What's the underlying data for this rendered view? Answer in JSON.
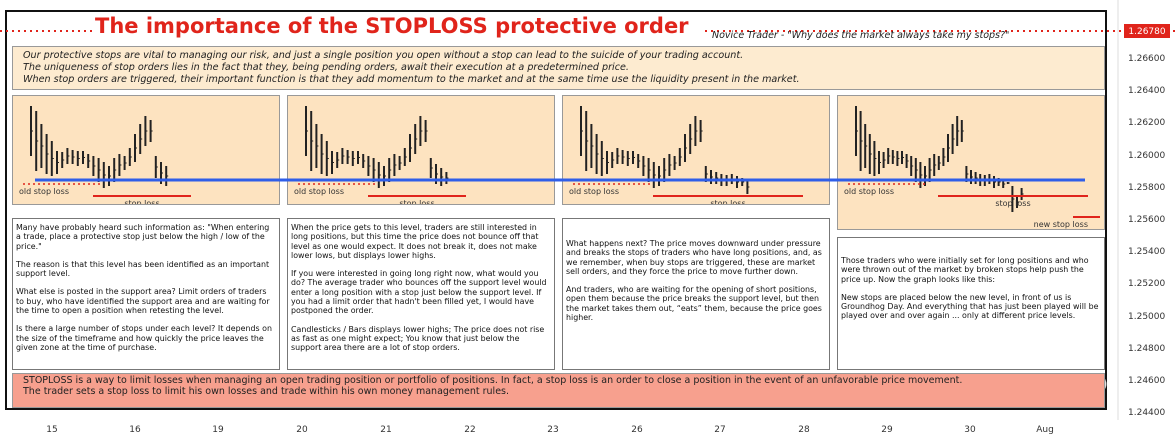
{
  "header": {
    "title": "The importance of the STOPLOSS protective order",
    "subtitle": "Novice Trader - \"Why does the market always take my stops?\"",
    "price_tag": "1.26780"
  },
  "intro": [
    "Our protective stops are vital to managing our risk, and just a single position you open without a stop can lead to the suicide of your trading account.",
    "The uniqueness of stop orders lies in the fact that they, being pending orders, await their execution at a predetermined price.",
    "When stop orders are triggered, their important function is that they add momentum to the market and at the same time use the liquidity present in the market."
  ],
  "panels": [
    {
      "old_label": "old stop loss",
      "stop_label": "stop loss"
    },
    {
      "old_label": "old stop loss",
      "stop_label": "stop loss"
    },
    {
      "old_label": "old stop loss",
      "stop_label": "stop loss"
    },
    {
      "old_label": "old stop loss",
      "stop_label": "stop loss",
      "new_label": "new stop loss"
    }
  ],
  "texts": [
    [
      "Many have probably heard such information as: \"When entering a trade, place a protective stop just below the high / low of the price.\"",
      "The reason is that this level has been identified as an important support level.",
      "What else is posted in the support area? Limit orders of traders to buy, who have identified the support area and are waiting for the time to open a position when retesting the level.",
      "Is there a large number of stops under each level? It depends on the size of the timeframe and how quickly the price leaves the given zone at the time of purchase."
    ],
    [
      "When the price gets to this level, traders are still interested in long positions, but this time the price does not bounce off that level as one would expect. It does not break it, does not make lower lows, but displays lower highs.",
      "If you were interested in going long right now, what would you do? The average trader who bounces off the support level would enter a long position with a stop just below the support level. If you had a limit order that hadn't been filled yet, I would have postponed the order.",
      "Candlesticks / Bars displays lower highs; The price does not rise as fast as one might expect; You know that just below the support area there are a lot of stop orders."
    ],
    [
      "What happens next? The price moves downward under pressure and breaks the stops of traders who have long positions, and, as we remember, when buy stops are triggered, these are market sell orders, and they force the price to move further down.",
      "And traders, who are waiting for the opening of short positions, open them because the price breaks the support level, but then the market takes them out, “eats” them, because the price goes higher."
    ],
    [
      "Those traders who were initially set for long positions and who were thrown out of the market by broken stops help push the price up. Now the graph looks like this:",
      "New stops are placed below the new level, in front of us is Groundhog Day. And everything that has just been played will be played over and over again ... only at different price levels."
    ]
  ],
  "footer": [
    "STOPLOSS is a way to limit losses when managing an open trading position or portfolio of positions. In fact, a stop loss is an order to close a position in the event of an unfavorable price movement.",
    "The trader sets a stop loss to limit his own losses and trade within his own money management rules."
  ],
  "price_axis": [
    "1.26600",
    "1.26400",
    "1.26200",
    "1.26000",
    "1.25800",
    "1.25600",
    "1.25400",
    "1.25200",
    "1.25000",
    "1.24800",
    "1.24600",
    "1.24400"
  ],
  "time_axis": [
    "15",
    "16",
    "19",
    "20",
    "21",
    "22",
    "23",
    "26",
    "27",
    "28",
    "29",
    "30",
    "Aug"
  ]
}
